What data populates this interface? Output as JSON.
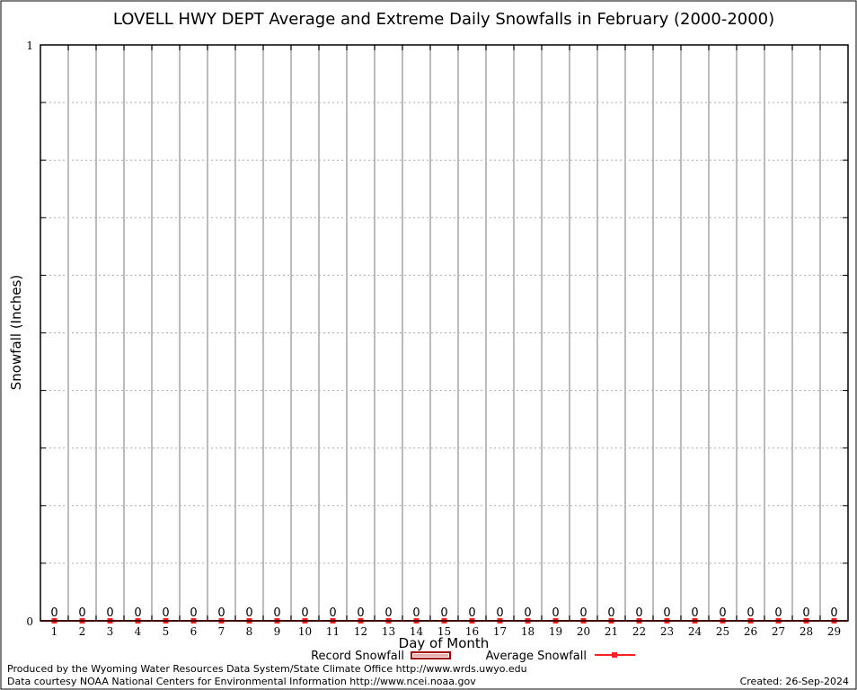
{
  "chart_data": {
    "type": "bar",
    "title": "LOVELL HWY DEPT Average and Extreme Daily Snowfalls in February (2000-2000)",
    "xlabel": "Day of Month",
    "ylabel": "Snowfall (Inches)",
    "categories": [
      1,
      2,
      3,
      4,
      5,
      6,
      7,
      8,
      9,
      10,
      11,
      12,
      13,
      14,
      15,
      16,
      17,
      18,
      19,
      20,
      21,
      22,
      23,
      24,
      25,
      26,
      27,
      28,
      29
    ],
    "ylim": [
      0,
      1
    ],
    "y_tick_labels": [
      "0",
      "1"
    ],
    "grid": true,
    "legend_placement": "bottom",
    "series": [
      {
        "name": "Record Snowfall",
        "color": "#a00000",
        "values": [
          0,
          0,
          0,
          0,
          0,
          0,
          0,
          0,
          0,
          0,
          0,
          0,
          0,
          0,
          0,
          0,
          0,
          0,
          0,
          0,
          0,
          0,
          0,
          0,
          0,
          0,
          0,
          0,
          0
        ]
      },
      {
        "name": "Average Snowfall",
        "color": "#ff2020",
        "values": [
          0,
          0,
          0,
          0,
          0,
          0,
          0,
          0,
          0,
          0,
          0,
          0,
          0,
          0,
          0,
          0,
          0,
          0,
          0,
          0,
          0,
          0,
          0,
          0,
          0,
          0,
          0,
          0,
          0
        ]
      }
    ],
    "data_labels": [
      "0",
      "0",
      "0",
      "0",
      "0",
      "0",
      "0",
      "0",
      "0",
      "0",
      "0",
      "0",
      "0",
      "0",
      "0",
      "0",
      "0",
      "0",
      "0",
      "0",
      "0",
      "0",
      "0",
      "0",
      "0",
      "0",
      "0",
      "0",
      "0"
    ]
  },
  "footer": {
    "produced_by": "Produced by the Wyoming Water Resources Data System/State Climate Office http://www.wrds.uwyo.edu",
    "courtesy": "Data courtesy NOAA National Centers for Environmental Information http://www.ncei.noaa.gov",
    "created": "Created: 26-Sep-2024"
  }
}
